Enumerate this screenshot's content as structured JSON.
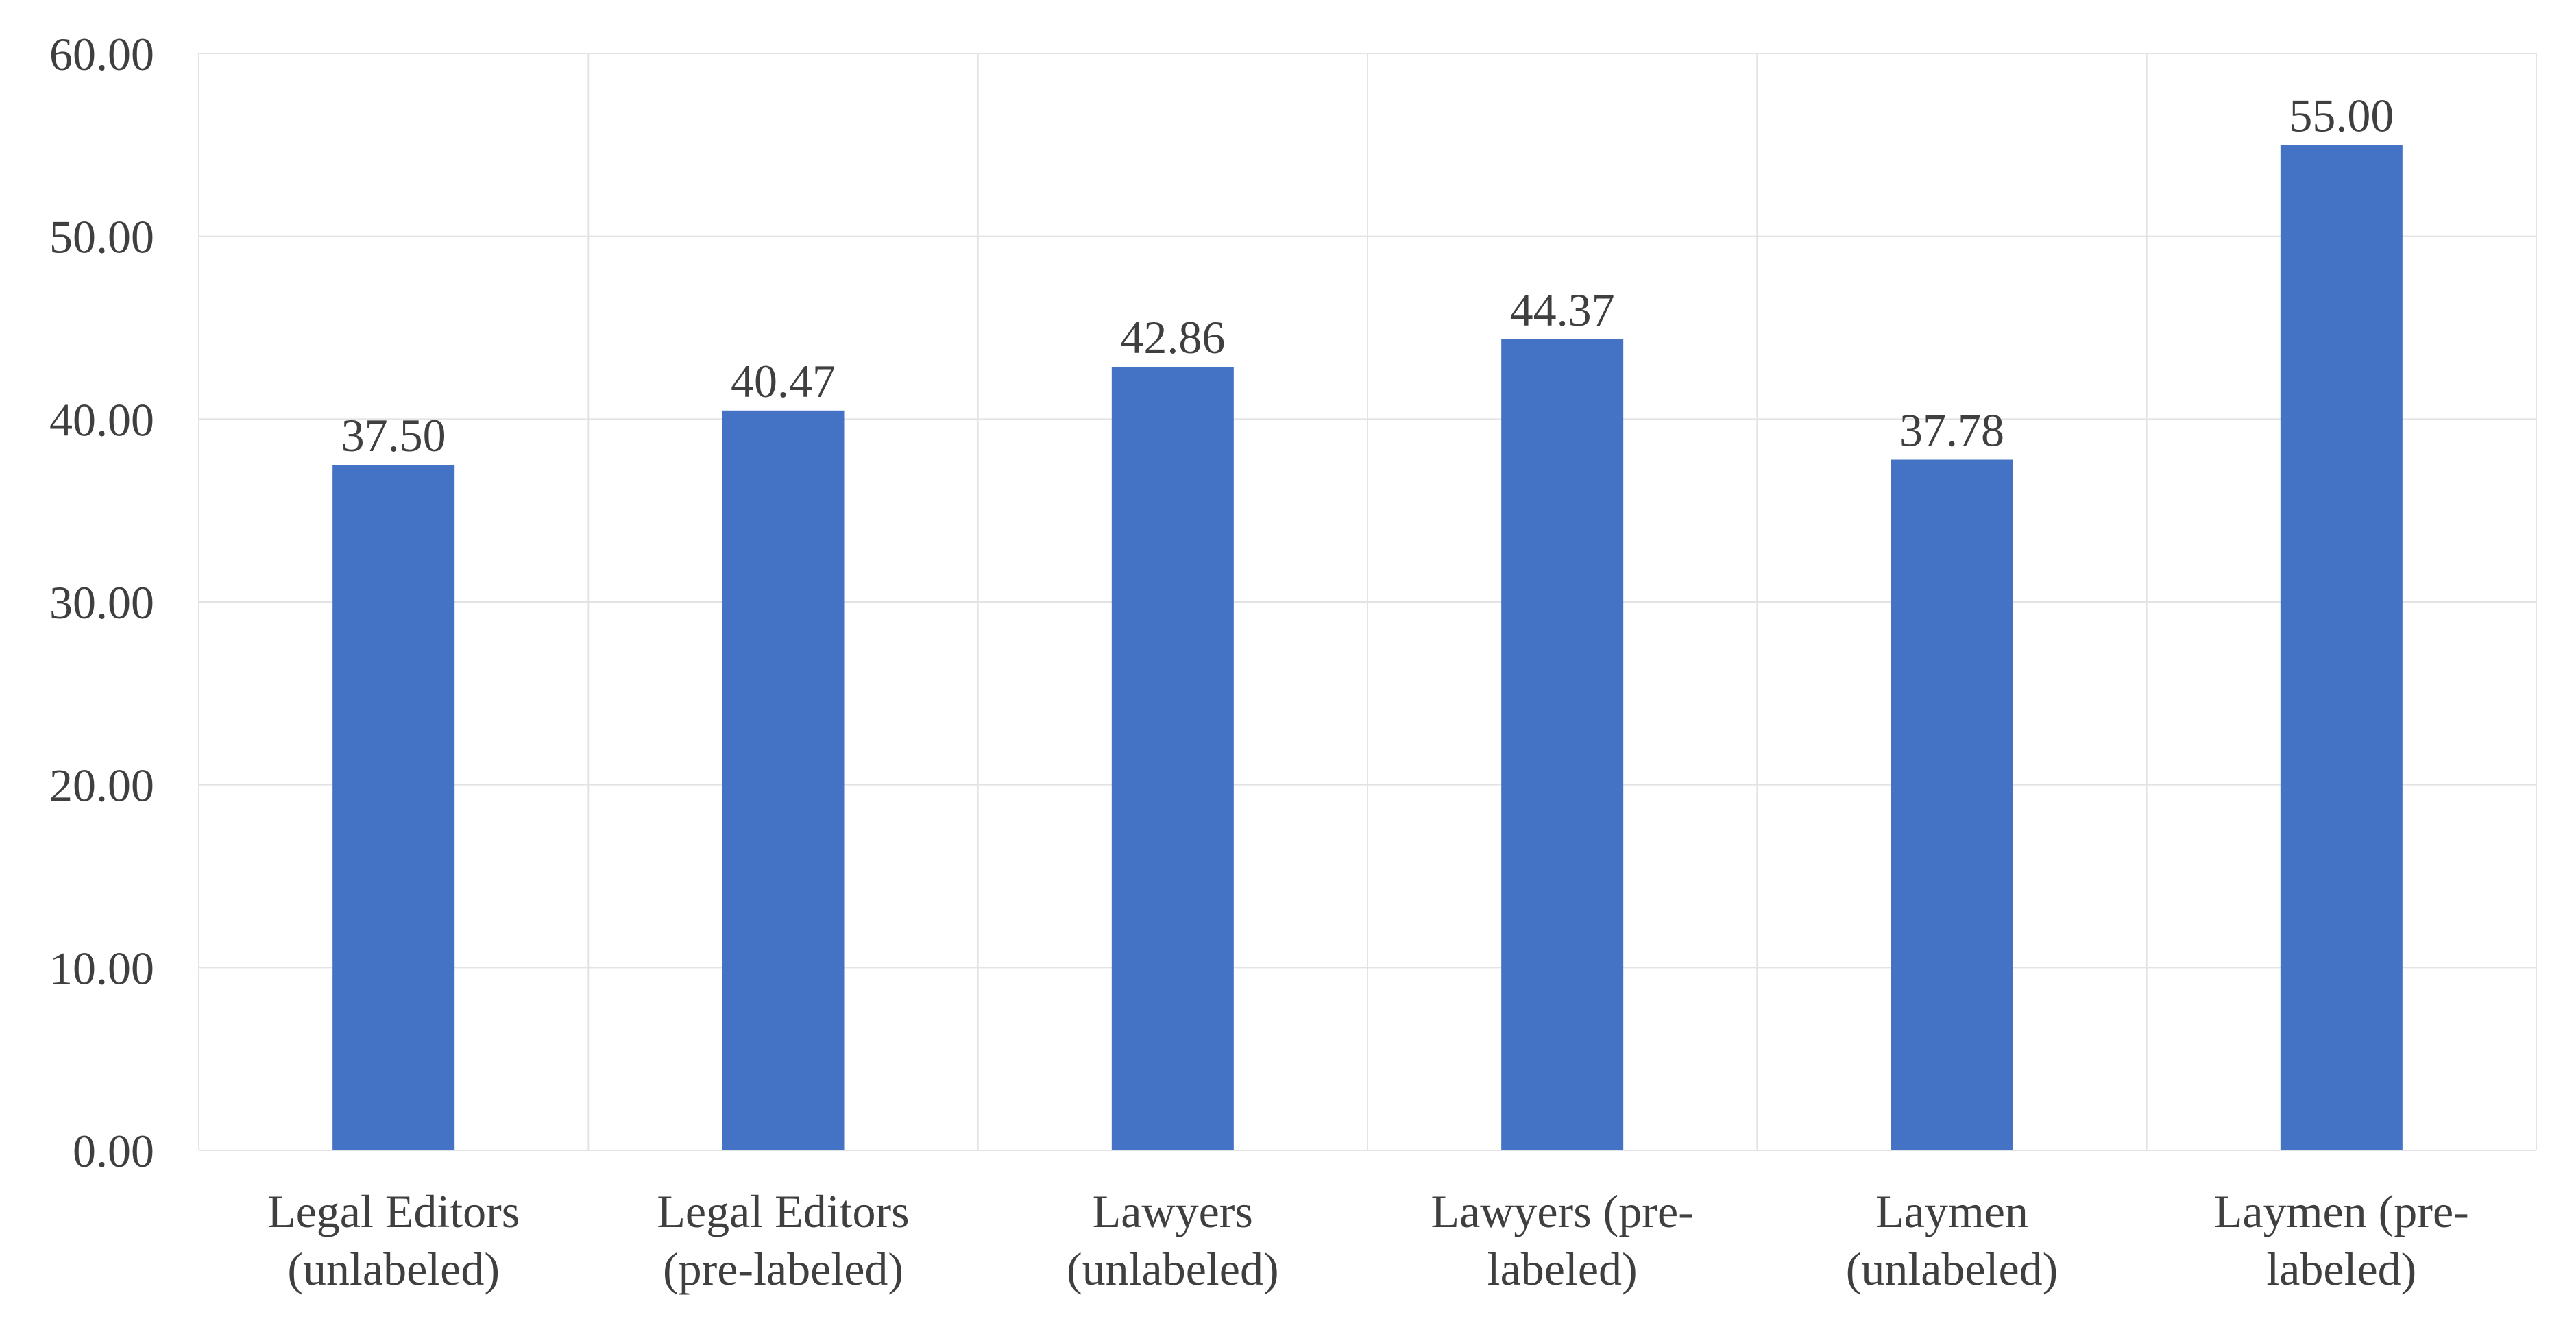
{
  "chart_data": {
    "type": "bar",
    "title": "",
    "xlabel": "",
    "ylabel": "",
    "categories": [
      [
        "Legal Editors",
        "(unlabeled)"
      ],
      [
        "Legal Editors",
        "(pre-labeled)"
      ],
      [
        "Lawyers",
        "(unlabeled)"
      ],
      [
        "Lawyers (pre-",
        "labeled)"
      ],
      [
        "Laymen",
        "(unlabeled)"
      ],
      [
        "Laymen (pre-",
        "labeled)"
      ]
    ],
    "values": [
      37.5,
      40.47,
      42.86,
      44.37,
      37.78,
      55.0
    ],
    "value_labels": [
      "37.50",
      "40.47",
      "42.86",
      "44.37",
      "37.78",
      "55.00"
    ],
    "ylim": [
      0,
      60
    ],
    "y_ticks": [
      0,
      10,
      20,
      30,
      40,
      50,
      60
    ],
    "y_tick_labels": [
      "0.00",
      "10.00",
      "20.00",
      "30.00",
      "40.00",
      "50.00",
      "60.00"
    ],
    "grid": true,
    "legend": "none",
    "colors": {
      "bar": "#4472C4",
      "grid": "#e3e3e3",
      "text": "#3f3f3f"
    }
  }
}
